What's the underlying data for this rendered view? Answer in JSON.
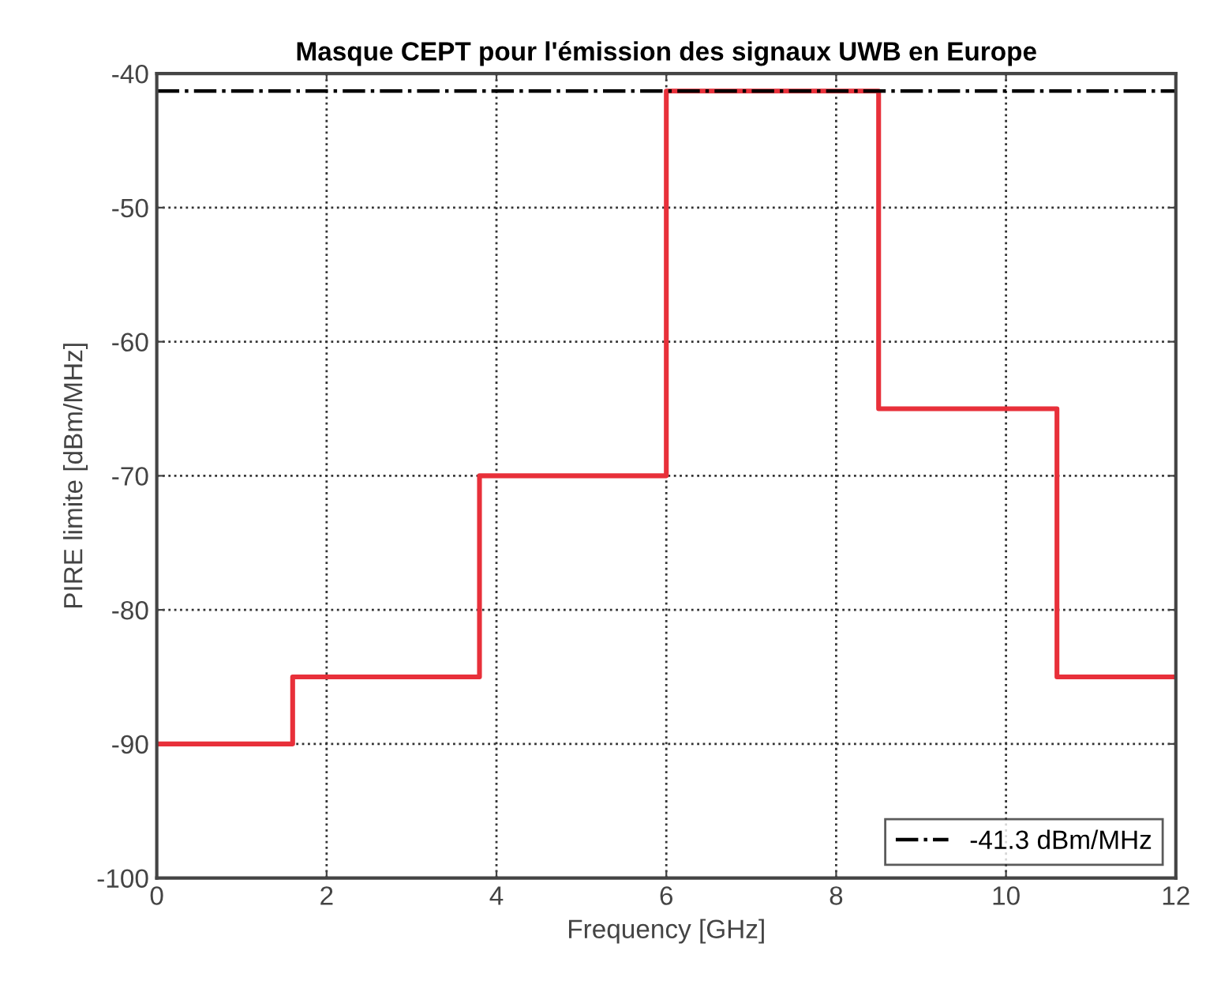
{
  "chart_data": {
    "type": "step",
    "title": "Masque CEPT pour l'émission des signaux UWB en Europe",
    "xlabel": "Frequency [GHz]",
    "ylabel": "PIRE limite [dBm/MHz]",
    "series": [
      {
        "x": [
          0,
          1.6,
          3.8,
          6,
          8.5,
          10.6,
          12
        ],
        "values": [
          -90,
          -85,
          -70,
          -41.3,
          -65,
          -85,
          -85
        ],
        "color": "#e8303a",
        "line_style": "solid"
      },
      {
        "type": "line",
        "name": "-41.3 dBm/MHz",
        "x": [
          0,
          12
        ],
        "values": [
          -41.3,
          -41.3
        ],
        "color": "#000000",
        "line_style": "dashdot"
      }
    ],
    "xlim": [
      0,
      12
    ],
    "xticks": [
      0,
      2,
      4,
      6,
      8,
      10,
      12
    ],
    "ylim": [
      -100,
      -40
    ],
    "yticks": [
      -100,
      -90,
      -80,
      -70,
      -60,
      -50,
      -40
    ],
    "grid": true,
    "legend": "bottom right",
    "marker": "none"
  }
}
